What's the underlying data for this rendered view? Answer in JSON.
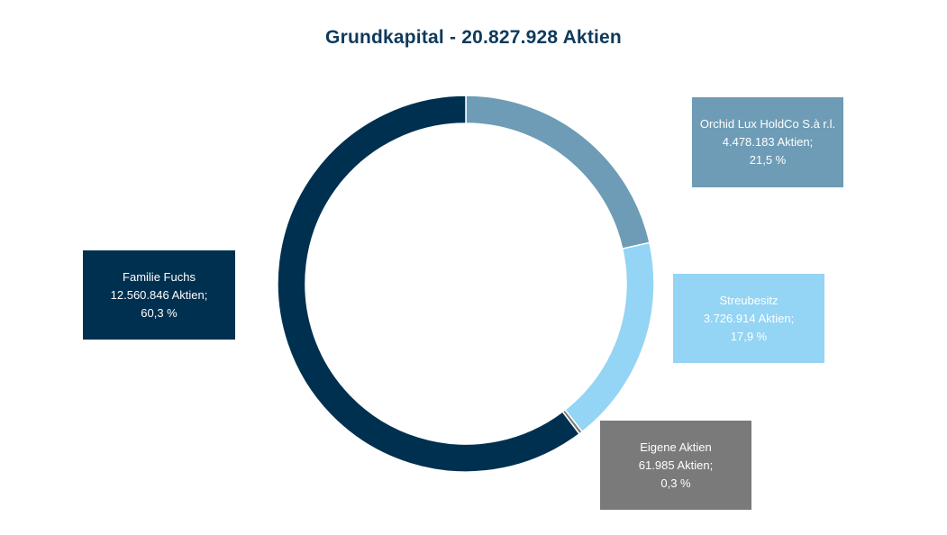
{
  "chart_data": {
    "type": "pie",
    "donut": true,
    "title": "Grundkapital - 20.827.928 Aktien",
    "slices": [
      {
        "label": "Orchid Lux HoldCo S.à r.l.",
        "shares": "4.478.183 Aktien;",
        "percent": "21,5 %",
        "value": 21.5,
        "color": "#6e9cb6"
      },
      {
        "label": "Streubesitz",
        "shares": "3.726.914 Aktien;",
        "percent": "17,9 %",
        "value": 17.9,
        "color": "#94d4f4"
      },
      {
        "label": "Eigene Aktien",
        "shares": "61.985 Aktien;",
        "percent": "0,3 %",
        "value": 0.3,
        "color": "#7a7a7a"
      },
      {
        "label": "Familie Fuchs",
        "shares": "12.560.846 Aktien;",
        "percent": "60,3 %",
        "value": 60.3,
        "color": "#003050"
      }
    ]
  }
}
